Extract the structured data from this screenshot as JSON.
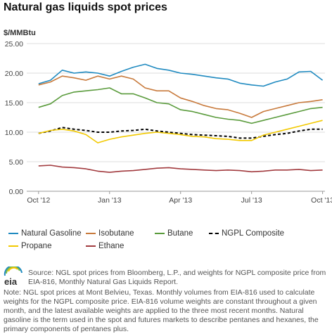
{
  "title": "Natural gas liquids spot prices",
  "unit_label": "$/MMBtu",
  "source_text": "Source: NGL spot prices from Bloomberg, L.P., and weights for NGPL composite price from EIA-816, Monthly Natural Gas Liquids Report.",
  "note_text": "Note: NGL spot prices at Mont Belvieu, Texas. Monthly volumes from EIA-816 used to calculate weights for the NGPL composite price. EIA-816 volume weights are constant throughout a given month, and the latest available weights are applied to the three most recent months. Natural gasoline is the term used in the spot and futures markets to describe pentanes and hexanes, the primary components of pentanes plus.",
  "logo": {
    "name": "eia-logo",
    "text": "eia",
    "colors": [
      "#1f8ac0",
      "#7dbb42",
      "#f5c400"
    ]
  },
  "chart_data": {
    "type": "line",
    "title": "Natural gas liquids spot prices",
    "ylabel": "$/MMBtu",
    "xlabel": "",
    "ylim": [
      0,
      25
    ],
    "yticks": [
      "0.00",
      "5.00",
      "10.00",
      "15.00",
      "20.00",
      "25.00"
    ],
    "xticks": [
      "Oct '12",
      "Jan '13",
      "Apr '13",
      "Jul '13",
      "Oct '13"
    ],
    "xtick_months": [
      0,
      3,
      6,
      9,
      12
    ],
    "grid": true,
    "legend_position": "bottom",
    "months": [
      0,
      0.5,
      1,
      1.5,
      2,
      2.5,
      3,
      3.5,
      4,
      4.5,
      5,
      5.5,
      6,
      6.5,
      7,
      7.5,
      8,
      8.5,
      9,
      9.5,
      10,
      10.5,
      11,
      11.5,
      12
    ],
    "series": [
      {
        "name": "Natural Gasoline",
        "color": "#1f8ac0",
        "dash": false,
        "values": [
          18.2,
          18.8,
          20.5,
          20.0,
          20.2,
          20.0,
          19.5,
          20.3,
          21.0,
          21.5,
          20.8,
          20.5,
          20.0,
          19.8,
          19.5,
          19.2,
          19.0,
          18.3,
          18.0,
          17.8,
          18.5,
          19.0,
          20.2,
          20.3,
          18.8
        ]
      },
      {
        "name": "Isobutane",
        "color": "#c87a3c",
        "dash": false,
        "values": [
          18.0,
          18.5,
          19.5,
          19.2,
          18.8,
          19.5,
          19.0,
          19.5,
          19.0,
          17.5,
          17.0,
          17.0,
          15.8,
          15.2,
          14.5,
          14.0,
          13.8,
          13.2,
          12.5,
          13.5,
          14.0,
          14.5,
          15.0,
          15.2,
          15.5
        ]
      },
      {
        "name": "Butane",
        "color": "#5a9b3c",
        "dash": false,
        "values": [
          14.2,
          14.8,
          16.2,
          16.8,
          17.0,
          17.2,
          17.5,
          16.5,
          16.5,
          15.8,
          15.0,
          14.8,
          13.8,
          13.5,
          13.0,
          12.5,
          12.2,
          12.0,
          11.5,
          12.0,
          12.5,
          13.0,
          13.5,
          14.0,
          14.2
        ]
      },
      {
        "name": "NGPL Composite",
        "color": "#000000",
        "dash": true,
        "values": [
          9.8,
          10.2,
          10.8,
          10.5,
          10.3,
          10.0,
          10.0,
          10.2,
          10.3,
          10.5,
          10.2,
          10.0,
          9.8,
          9.6,
          9.5,
          9.4,
          9.3,
          9.0,
          9.0,
          9.3,
          9.6,
          9.8,
          10.2,
          10.5,
          10.5
        ]
      },
      {
        "name": "Propane",
        "color": "#f2c900",
        "dash": false,
        "values": [
          9.8,
          10.3,
          10.5,
          10.2,
          9.6,
          8.2,
          8.8,
          9.2,
          9.5,
          9.8,
          10.0,
          9.8,
          9.6,
          9.3,
          9.2,
          8.9,
          8.8,
          8.6,
          8.6,
          9.5,
          10.0,
          10.5,
          11.0,
          11.5,
          12.0
        ]
      },
      {
        "name": "Ethane",
        "color": "#a23b3f",
        "dash": false,
        "values": [
          4.3,
          4.4,
          4.1,
          4.0,
          3.8,
          3.4,
          3.2,
          3.4,
          3.5,
          3.7,
          3.9,
          4.0,
          3.8,
          3.7,
          3.6,
          3.5,
          3.6,
          3.5,
          3.3,
          3.4,
          3.6,
          3.6,
          3.7,
          3.5,
          3.6
        ]
      }
    ]
  }
}
